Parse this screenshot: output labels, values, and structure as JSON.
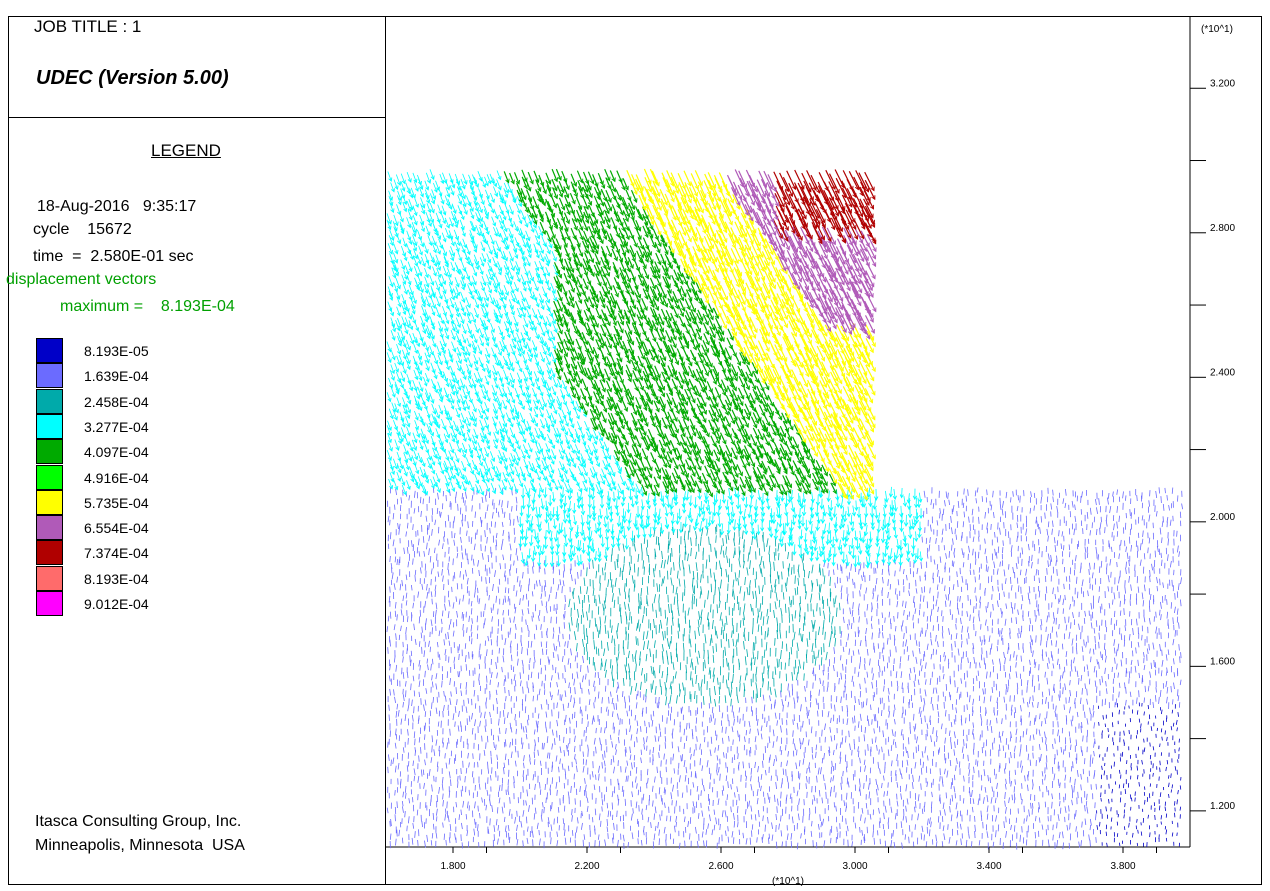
{
  "header": {
    "job_title": "JOB TITLE : 1",
    "program": "UDEC (Version 5.00)",
    "scale_top": "(*10^1)"
  },
  "legend": {
    "heading": "LEGEND",
    "date": "18-Aug-2016   9:35:17",
    "cycle": "cycle    15672",
    "time": "time  =  2.580E-01 sec",
    "plot_item": "displacement vectors",
    "maximum": "maximum =    8.193E-04",
    "scale": [
      {
        "label": "8.193E-05",
        "color": "#0000c8"
      },
      {
        "label": "1.639E-04",
        "color": "#6b6bff"
      },
      {
        "label": "2.458E-04",
        "color": "#00aaaa"
      },
      {
        "label": "3.277E-04",
        "color": "#00ffff"
      },
      {
        "label": "4.097E-04",
        "color": "#00aa00"
      },
      {
        "label": "4.916E-04",
        "color": "#00ff00"
      },
      {
        "label": "5.735E-04",
        "color": "#ffff00"
      },
      {
        "label": "6.554E-04",
        "color": "#b05ab8"
      },
      {
        "label": "7.374E-04",
        "color": "#b00000"
      },
      {
        "label": "8.193E-04",
        "color": "#ff6b6b"
      },
      {
        "label": "9.012E-04",
        "color": "#ff00ff"
      }
    ]
  },
  "credits": {
    "line1": "Itasca Consulting Group, Inc.",
    "line2": "Minneapolis, Minnesota  USA"
  },
  "chart_data": {
    "type": "scatter",
    "plot_item": "displacement vectors",
    "x_scale_label": "(*10^1)",
    "y_scale_label": "(*10^1)",
    "xlim": [
      1.6,
      4.0
    ],
    "ylim": [
      1.1,
      3.4
    ],
    "x_ticks": [
      "1.800",
      "2.200",
      "2.600",
      "3.000",
      "3.400",
      "3.800"
    ],
    "x_tick_values": [
      1.8,
      2.2,
      2.6,
      3.0,
      3.4,
      3.8
    ],
    "y_ticks": [
      "3.200",
      "2.800",
      "2.400",
      "2.000",
      "1.600",
      "1.200"
    ],
    "y_tick_values": [
      3.2,
      2.8,
      2.4,
      2.0,
      1.6,
      1.2
    ],
    "maximum_displacement": 0.0008193,
    "model_outline": [
      [
        1.6,
        1.11
      ],
      [
        1.6,
        2.98
      ],
      [
        3.05,
        2.98
      ],
      [
        3.05,
        2.1
      ],
      [
        3.99,
        2.1
      ],
      [
        3.99,
        1.11
      ]
    ],
    "vector_field_regions": [
      {
        "zone": "far field bottom / right",
        "magnitude": 0.0001639
      },
      {
        "zone": "lower central basin",
        "magnitude": 0.0002458
      },
      {
        "zone": "left upper and middle band",
        "magnitude": 0.0003277
      },
      {
        "zone": "central slope",
        "magnitude": 0.0004097
      },
      {
        "zone": "upper slope near face",
        "magnitude": 0.0005735
      },
      {
        "zone": "slope crest",
        "magnitude": 0.0006554
      },
      {
        "zone": "top right corner",
        "magnitude": 0.0007374
      },
      {
        "zone": "bottom right corner",
        "magnitude": 8.193e-05
      }
    ]
  }
}
